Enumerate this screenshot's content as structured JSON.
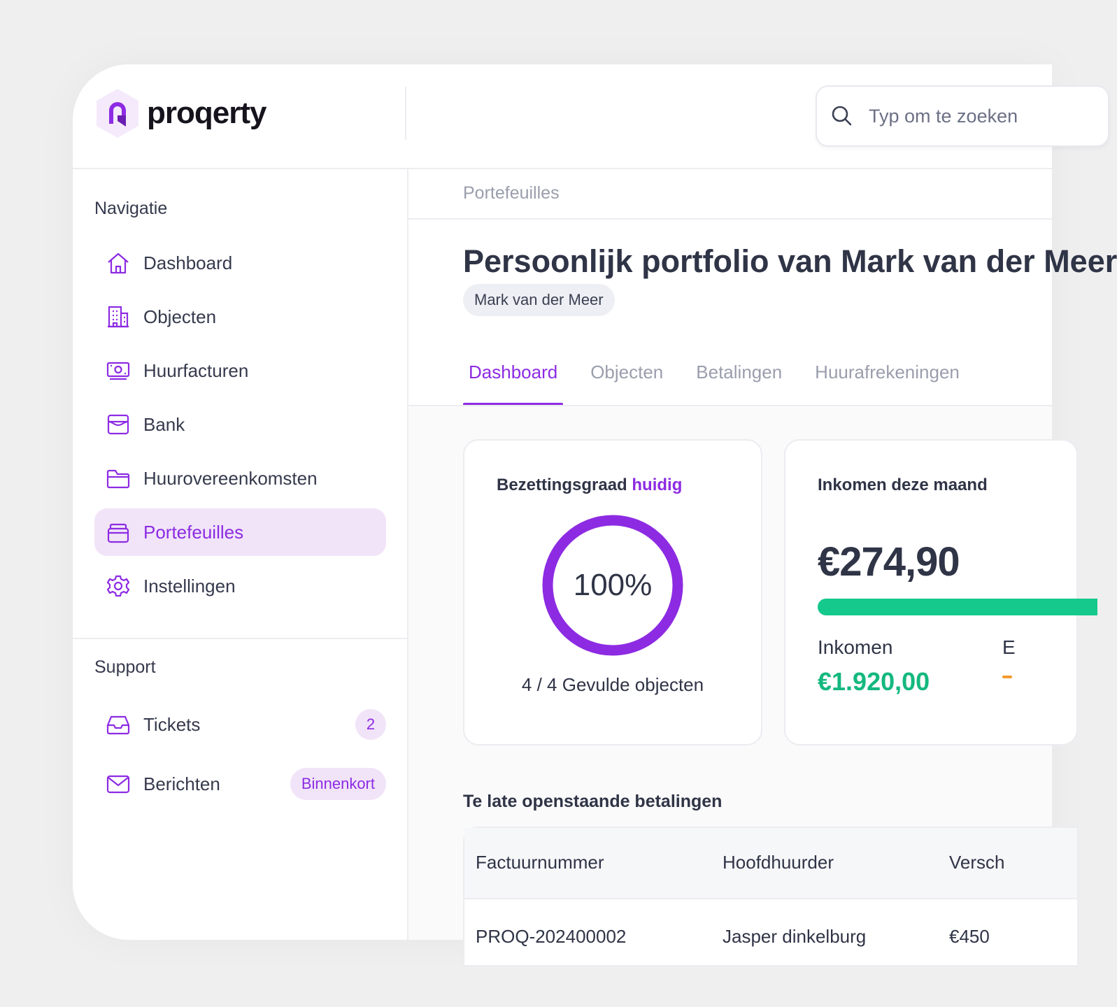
{
  "app": {
    "brand": "proqerty"
  },
  "search": {
    "placeholder": "Typ om te zoeken"
  },
  "sidebar": {
    "nav_title": "Navigatie",
    "items": [
      {
        "label": "Dashboard",
        "icon": "home-icon"
      },
      {
        "label": "Objecten",
        "icon": "building-icon"
      },
      {
        "label": "Huurfacturen",
        "icon": "money-icon"
      },
      {
        "label": "Bank",
        "icon": "bank-icon"
      },
      {
        "label": "Huurovereenkomsten",
        "icon": "folder-icon"
      },
      {
        "label": "Portefeuilles",
        "icon": "portfolio-icon",
        "active": true
      },
      {
        "label": "Instellingen",
        "icon": "gear-icon"
      }
    ],
    "support_title": "Support",
    "support_items": [
      {
        "label": "Tickets",
        "icon": "inbox-icon",
        "badge": "2"
      },
      {
        "label": "Berichten",
        "icon": "mail-icon",
        "badge": "Binnenkort"
      }
    ]
  },
  "main": {
    "breadcrumb": "Portefeuilles",
    "title": "Persoonlijk portfolio van Mark van der Meer",
    "owner": "Mark van der Meer",
    "tabs": [
      "Dashboard",
      "Objecten",
      "Betalingen",
      "Huurafrekeningen"
    ],
    "active_tab": "Dashboard",
    "occupancy": {
      "title": "Bezettingsgraad",
      "title_accent": "huidig",
      "percent_label": "100%",
      "fraction": 1.0,
      "subtitle": "4 / 4 Gevulde objecten"
    },
    "income": {
      "title": "Inkomen deze maand",
      "amount": "€274,90",
      "income_label": "Inkomen",
      "income_value": "€1.920,00",
      "expense_label": "E"
    },
    "late_payments": {
      "title": "Te late openstaande betalingen",
      "columns": [
        "Factuurnummer",
        "Hoofdhuurder",
        "Versch"
      ],
      "rows": [
        [
          "PROQ-202400002",
          "Jasper dinkelburg",
          "€450"
        ]
      ]
    }
  },
  "colors": {
    "accent": "#8d2be3",
    "accent_soft": "#f1e4f8",
    "success": "#14c98b",
    "warning": "#f29a2e",
    "text": "#2f3446"
  }
}
